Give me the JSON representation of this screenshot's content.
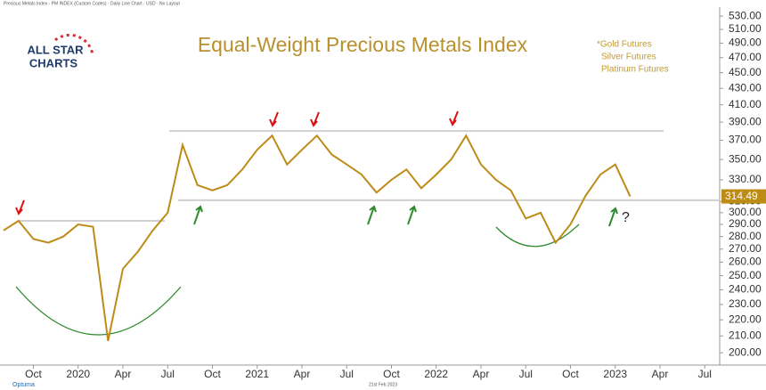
{
  "header": "Precious Metals Index - PM INDEX (Custom Codes) · Daily Line Chart · USD · No Layout",
  "logo": [
    "ALL STAR",
    "CHARTS"
  ],
  "footer": {
    "brand": "Optuma",
    "date": "21st Feb 2023"
  },
  "chart_data": {
    "type": "line",
    "title": "Equal-Weight Precious Metals Index",
    "notes": [
      "*Gold Futures",
      "Silver Futures",
      "Platinum Futures"
    ],
    "annotation": "?",
    "log_scale": true,
    "color": "#bd8c17",
    "x": [
      "2019-08",
      "2019-09",
      "2019-10",
      "2019-11",
      "2019-12",
      "2020-01",
      "2020-02",
      "2020-03",
      "2020-04",
      "2020-05",
      "2020-06",
      "2020-07",
      "2020-08",
      "2020-09",
      "2020-10",
      "2020-11",
      "2020-12",
      "2021-01",
      "2021-02",
      "2021-03",
      "2021-04",
      "2021-05",
      "2021-06",
      "2021-07",
      "2021-08",
      "2021-09",
      "2021-10",
      "2021-11",
      "2021-12",
      "2022-01",
      "2022-02",
      "2022-03",
      "2022-04",
      "2022-05",
      "2022-06",
      "2022-07",
      "2022-08",
      "2022-09",
      "2022-10",
      "2022-11",
      "2022-12",
      "2023-01",
      "2023-02"
    ],
    "values": [
      285,
      293,
      278,
      275,
      280,
      290,
      288,
      207,
      255,
      268,
      285,
      300,
      365,
      325,
      320,
      325,
      340,
      360,
      375,
      345,
      360,
      375,
      355,
      345,
      335,
      318,
      330,
      340,
      322,
      335,
      350,
      375,
      345,
      330,
      320,
      295,
      300,
      275,
      290,
      315,
      335,
      345,
      314.49
    ],
    "last_value_label": "314.49",
    "reference_lines": [
      293,
      380,
      311
    ],
    "xlim": [
      "2019-08",
      "2023-08"
    ],
    "xticks": [
      {
        "value": "2019-10",
        "label": "Oct"
      },
      {
        "value": "2020-01",
        "label": "2020"
      },
      {
        "value": "2020-04",
        "label": "Apr"
      },
      {
        "value": "2020-07",
        "label": "Jul"
      },
      {
        "value": "2020-10",
        "label": "Oct"
      },
      {
        "value": "2021-01",
        "label": "2021"
      },
      {
        "value": "2021-04",
        "label": "Apr"
      },
      {
        "value": "2021-07",
        "label": "Jul"
      },
      {
        "value": "2021-10",
        "label": "Oct"
      },
      {
        "value": "2022-01",
        "label": "2022"
      },
      {
        "value": "2022-04",
        "label": "Apr"
      },
      {
        "value": "2022-07",
        "label": "Jul"
      },
      {
        "value": "2022-10",
        "label": "Oct"
      },
      {
        "value": "2023-01",
        "label": "2023"
      },
      {
        "value": "2023-04",
        "label": "Apr"
      },
      {
        "value": "2023-07",
        "label": "Jul"
      }
    ],
    "ylim": [
      193,
      544
    ],
    "yticks": [
      {
        "value": 200,
        "label": "200.00"
      },
      {
        "value": 210,
        "label": "210.00"
      },
      {
        "value": 220,
        "label": "220.00"
      },
      {
        "value": 230,
        "label": "230.00"
      },
      {
        "value": 240,
        "label": "240.00"
      },
      {
        "value": 250,
        "label": "250.00"
      },
      {
        "value": 260,
        "label": "260.00"
      },
      {
        "value": 270,
        "label": "270.00"
      },
      {
        "value": 280,
        "label": "280.00"
      },
      {
        "value": 290,
        "label": "290.00"
      },
      {
        "value": 300,
        "label": "300.00"
      },
      {
        "value": 310,
        "label": "310.00"
      },
      {
        "value": 330,
        "label": "330.00"
      },
      {
        "value": 350,
        "label": "350.00"
      },
      {
        "value": 370,
        "label": "370.00"
      },
      {
        "value": 390,
        "label": "390.00"
      },
      {
        "value": 410,
        "label": "410.00"
      },
      {
        "value": 430,
        "label": "430.00"
      },
      {
        "value": 450,
        "label": "450.00"
      },
      {
        "value": 470,
        "label": "470.00"
      },
      {
        "value": 490,
        "label": "490.00"
      },
      {
        "value": 510,
        "label": "510.00"
      },
      {
        "value": 530,
        "label": "530.00"
      }
    ]
  }
}
